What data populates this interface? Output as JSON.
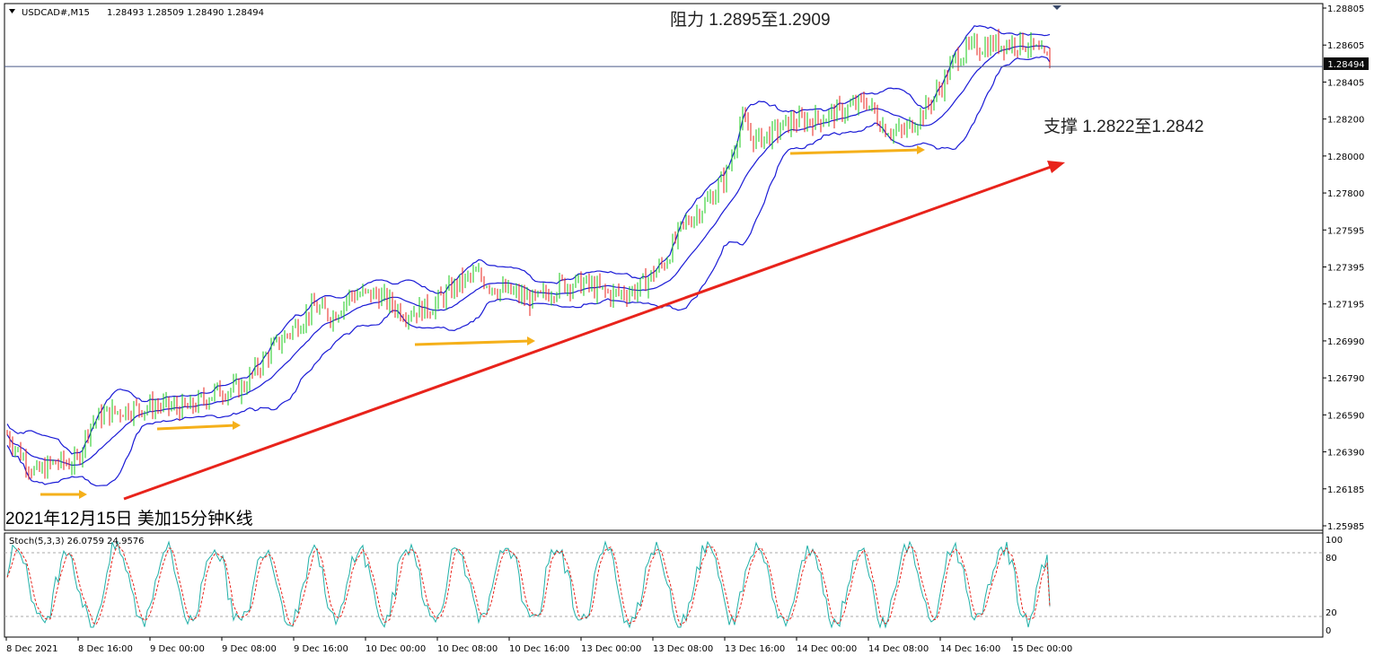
{
  "chart_data": [
    {
      "type": "candlestick",
      "symbol_header": "USDCAD#,M15",
      "ohlc_header": "1.28493 1.28509 1.28490 1.28494",
      "current_price_label": "1.28494",
      "current_price": 1.28494,
      "y_ticks": [
        "1.28805",
        "1.28605",
        "1.28405",
        "1.28200",
        "1.28000",
        "1.27800",
        "1.27595",
        "1.27395",
        "1.27195",
        "1.26990",
        "1.26790",
        "1.26590",
        "1.26390",
        "1.26185",
        "1.25985"
      ],
      "ylim": [
        1.2593,
        1.2882
      ],
      "x_ticks": [
        "8 Dec 2021",
        "8 Dec 16:00",
        "9 Dec 00:00",
        "9 Dec 08:00",
        "9 Dec 16:00",
        "10 Dec 00:00",
        "10 Dec 08:00",
        "10 Dec 16:00",
        "13 Dec 00:00",
        "13 Dec 08:00",
        "13 Dec 16:00",
        "14 Dec 00:00",
        "14 Dec 08:00",
        "14 Dec 16:00",
        "15 Dec 00:00"
      ],
      "indicator": "Bollinger Bands",
      "annotations": {
        "resistance": "阻力 1.2895至1.2909",
        "support": "支撑 1.2822至1.2842",
        "caption": "2021年12月15日 美加15分钟K线"
      },
      "trend_line": {
        "from": [
          "8 Dec 16:00",
          1.2614
        ],
        "to": [
          "15 Dec 03:00",
          1.2802
        ],
        "color": "#e8231b"
      },
      "support_markers": [
        {
          "from": "8 Dec 12:30",
          "to": "8 Dec 16:00",
          "y": 1.2614
        },
        {
          "from": "8 Dec 22:00",
          "to": "9 Dec 08:00",
          "y": 1.2654
        },
        {
          "from": "9 Dec 22:00",
          "to": "10 Dec 10:00",
          "y": 1.2696
        },
        {
          "from": "13 Dec 14:00",
          "to": "14 Dec 09:00",
          "y": 1.28
        }
      ],
      "colors": {
        "up": "#18c818",
        "down": "#e8231b",
        "bands": "#1a1ad6",
        "marker": "#f5b01a",
        "grid_line": "#4a5a88"
      }
    },
    {
      "type": "line",
      "title": "Stoch(5,3,3) 26.0759 24.9576",
      "y_ticks": [
        "100",
        "80",
        "20",
        "0"
      ],
      "ylim": [
        0,
        100
      ],
      "levels": [
        80,
        20
      ],
      "series": [
        {
          "name": "%K",
          "color": "#20b0a8"
        },
        {
          "name": "%D",
          "color": "#e8231b"
        }
      ],
      "last_values": {
        "K": 26.0759,
        "D": 24.9576
      }
    }
  ]
}
